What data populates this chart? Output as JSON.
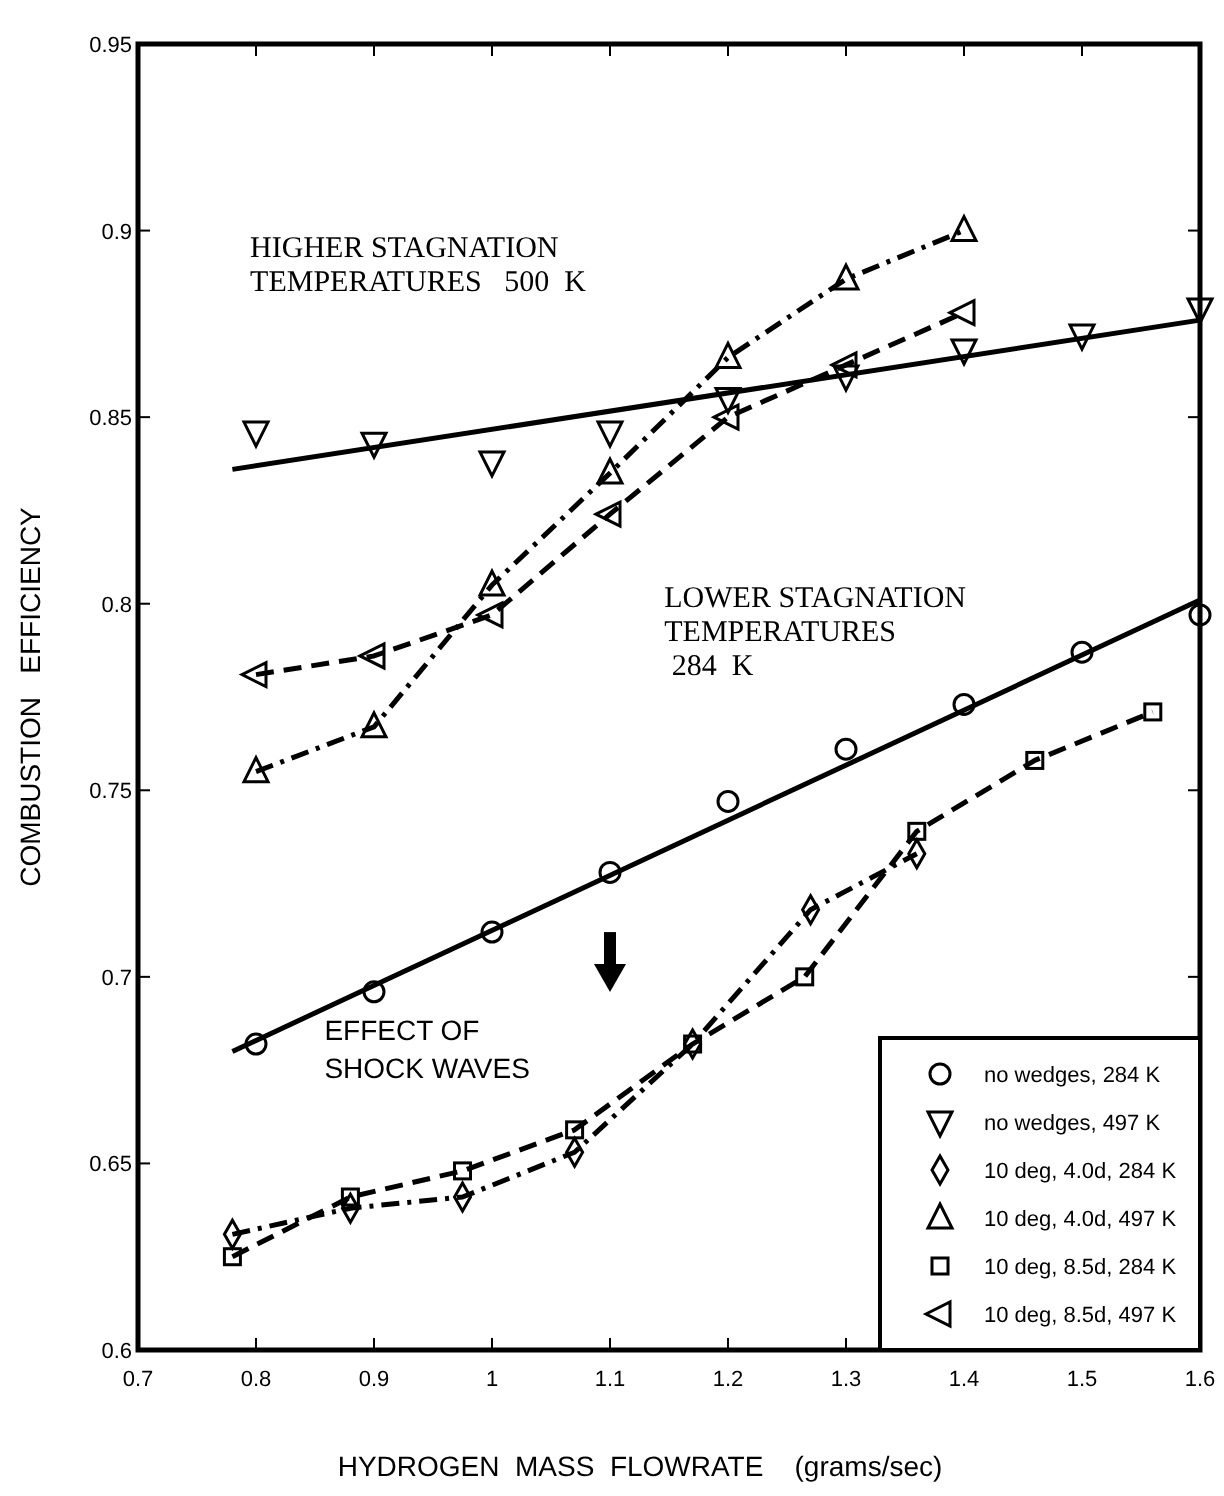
{
  "chart_data": {
    "type": "line",
    "xlabel": "HYDROGEN  MASS  FLOWRATE    (grams/sec)",
    "ylabel": "COMBUSTION   EFFICIENCY",
    "xlim": [
      0.7,
      1.6
    ],
    "xticks": [
      0.7,
      0.8,
      0.9,
      1,
      1.1,
      1.2,
      1.3,
      1.4,
      1.5,
      1.6
    ],
    "ylim": [
      0.6,
      0.95
    ],
    "yticks": [
      0.6,
      0.65,
      0.7,
      0.75,
      0.8,
      0.85,
      0.9,
      0.95
    ],
    "grid": false,
    "legend": "bottom right",
    "line_style": "solid",
    "annotations": [
      "HIGHER STAGNATION\nTEMPERATURES   500  K",
      "LOWER STAGNATION\nTEMPERATURES\n 284  K",
      "EFFECT OF\nSHOCK WAVES"
    ],
    "series": [
      {
        "name": "no wedges, 284 K",
        "type": "scatter",
        "marker": "circle",
        "color": "#000000",
        "x": [
          0.8,
          0.9,
          1.0,
          1.1,
          1.2,
          1.3,
          1.4,
          1.5,
          1.6
        ],
        "values": [
          0.682,
          0.696,
          0.712,
          0.728,
          0.747,
          0.761,
          0.773,
          0.787,
          0.797
        ]
      },
      {
        "name": "no wedges, 497 K",
        "type": "scatter",
        "marker": "triangle-down",
        "color": "#000000",
        "x": [
          0.8,
          0.9,
          1.0,
          1.1,
          1.2,
          1.3,
          1.4,
          1.5,
          1.6
        ],
        "values": [
          0.846,
          0.843,
          0.838,
          0.846,
          0.855,
          0.861,
          0.868,
          0.872,
          0.879
        ]
      },
      {
        "name": "10 deg, 4.0d, 284 K",
        "type": "line",
        "marker": "diamond",
        "line_style": "dashdot",
        "color": "#000000",
        "x": [
          0.78,
          0.88,
          0.975,
          1.07,
          1.17,
          1.27,
          1.36
        ],
        "values": [
          0.631,
          0.638,
          0.641,
          0.653,
          0.682,
          0.718,
          0.733
        ]
      },
      {
        "name": "10 deg, 4.0d, 497 K",
        "type": "line",
        "marker": "triangle",
        "line_style": "dashdot",
        "color": "#000000",
        "x": [
          0.8,
          0.9,
          1.0,
          1.1,
          1.2,
          1.3,
          1.4
        ],
        "values": [
          0.755,
          0.767,
          0.805,
          0.835,
          0.866,
          0.887,
          0.9
        ]
      },
      {
        "name": "10 deg, 8.5d, 284 K",
        "type": "line",
        "marker": "square",
        "line_style": "dashed",
        "color": "#000000",
        "x": [
          0.78,
          0.88,
          0.975,
          1.07,
          1.17,
          1.265,
          1.36,
          1.46,
          1.56
        ],
        "values": [
          0.625,
          0.641,
          0.648,
          0.659,
          0.682,
          0.7,
          0.739,
          0.758,
          0.771
        ]
      },
      {
        "name": "10 deg, 8.5d, 497 K",
        "type": "line",
        "marker": "triangle-left",
        "line_style": "dashed",
        "color": "#000000",
        "x": [
          0.8,
          0.9,
          1.0,
          1.1,
          1.2,
          1.3,
          1.4
        ],
        "values": [
          0.781,
          0.786,
          0.797,
          0.824,
          0.85,
          0.864,
          0.878
        ]
      },
      {
        "marker": "none",
        "color": "#000000",
        "x": [
          0.78,
          1.6
        ],
        "values": [
          0.68,
          0.801
        ]
      },
      {
        "marker": "none",
        "color": "#000000",
        "x": [
          0.78,
          1.6
        ],
        "values": [
          0.836,
          0.876
        ]
      }
    ]
  }
}
